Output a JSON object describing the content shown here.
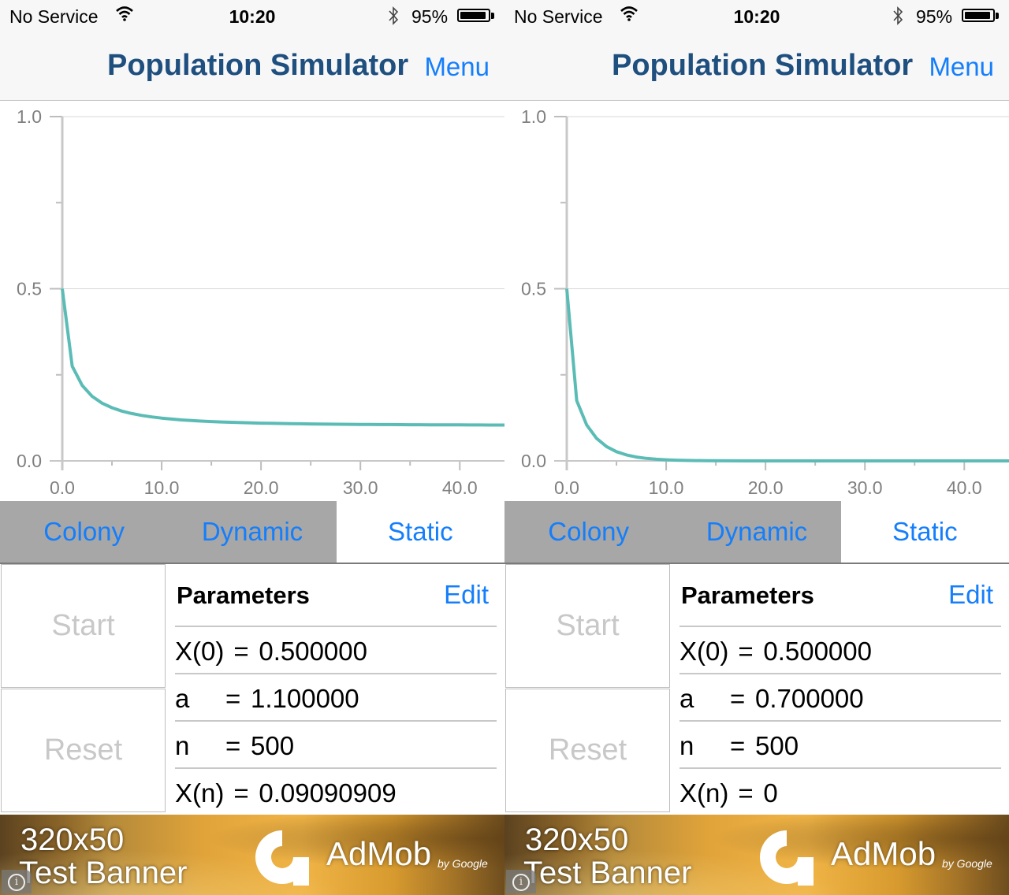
{
  "screens": [
    {
      "status": {
        "carrier": "No Service",
        "time": "10:20",
        "battery": "95%",
        "battery_level": 0.95
      },
      "nav": {
        "title": "Population Simulator",
        "menu": "Menu"
      },
      "tabs": [
        "Colony",
        "Dynamic",
        "Static"
      ],
      "active_tab": "Static",
      "controls": {
        "start": "Start",
        "reset": "Reset"
      },
      "params": {
        "title": "Parameters",
        "edit": "Edit",
        "rows": [
          {
            "label": "X(0)",
            "eq": "=",
            "value": "0.500000"
          },
          {
            "label": "a",
            "eq": "=",
            "value": "1.100000"
          },
          {
            "label": "n",
            "eq": "=",
            "value": "500"
          },
          {
            "label": "X(n)",
            "eq": "=",
            "value": "0.09090909"
          }
        ]
      },
      "ad": {
        "line1": "320x50",
        "line2": "Test Banner",
        "brand": "AdMob",
        "by": "by Google"
      }
    },
    {
      "status": {
        "carrier": "No Service",
        "time": "10:20",
        "battery": "95%",
        "battery_level": 0.95
      },
      "nav": {
        "title": "Population Simulator",
        "menu": "Menu"
      },
      "tabs": [
        "Colony",
        "Dynamic",
        "Static"
      ],
      "active_tab": "Static",
      "controls": {
        "start": "Start",
        "reset": "Reset"
      },
      "params": {
        "title": "Parameters",
        "edit": "Edit",
        "rows": [
          {
            "label": "X(0)",
            "eq": "=",
            "value": "0.500000"
          },
          {
            "label": "a",
            "eq": "=",
            "value": "0.700000"
          },
          {
            "label": "n",
            "eq": "=",
            "value": "500"
          },
          {
            "label": "X(n)",
            "eq": "=",
            "value": "0"
          }
        ]
      },
      "ad": {
        "line1": "320x50",
        "line2": "Test Banner",
        "brand": "AdMob",
        "by": "by Google"
      }
    }
  ],
  "colors": {
    "line": "#5bbcb6",
    "accent": "#147efb",
    "title": "#1f4f7f",
    "tab_inactive": "#a7a7a7"
  },
  "chart_data": [
    {
      "type": "line",
      "xlim": [
        0,
        44.5
      ],
      "ylim": [
        0,
        1.0
      ],
      "xticks": [
        "0.0",
        "10.0",
        "20.0",
        "30.0",
        "40.0"
      ],
      "yticks": [
        "0.0",
        "0.5",
        "1.0"
      ],
      "grid": true,
      "series": [
        {
          "x": [
            0,
            1,
            2,
            3,
            4,
            5,
            6,
            7,
            8,
            9,
            10,
            11,
            12,
            13,
            14,
            15,
            16,
            17,
            18,
            19,
            20,
            21,
            22,
            23,
            24,
            25,
            26,
            27,
            28,
            29,
            30,
            31,
            32,
            33,
            34,
            35,
            36,
            37,
            38,
            39,
            40,
            41,
            42,
            43,
            44,
            44.5
          ],
          "y": [
            0.5,
            0.275,
            0.2195,
            0.1877,
            0.1678,
            0.1544,
            0.1447,
            0.1375,
            0.132,
            0.1277,
            0.1242,
            0.1214,
            0.1191,
            0.1172,
            0.1156,
            0.1142,
            0.1131,
            0.1121,
            0.1112,
            0.1104,
            0.1097,
            0.1092,
            0.1086,
            0.1082,
            0.1078,
            0.1074,
            0.107,
            0.1067,
            0.1064,
            0.1062,
            0.106,
            0.1058,
            0.1056,
            0.1054,
            0.1052,
            0.1051,
            0.105,
            0.1048,
            0.1047,
            0.1046,
            0.1045,
            0.1044,
            0.1043,
            0.1042,
            0.1042,
            0.1041
          ]
        }
      ]
    },
    {
      "type": "line",
      "xlim": [
        0,
        44.5
      ],
      "ylim": [
        0,
        1.0
      ],
      "xticks": [
        "0.0",
        "10.0",
        "20.0",
        "30.0",
        "40.0"
      ],
      "yticks": [
        "0.0",
        "0.5",
        "1.0"
      ],
      "grid": true,
      "series": [
        {
          "x": [
            0,
            1,
            2,
            3,
            4,
            5,
            6,
            7,
            8,
            9,
            10,
            11,
            12,
            13,
            14,
            16,
            18,
            20,
            25,
            30,
            35,
            40,
            44.5
          ],
          "y": [
            0.5,
            0.175,
            0.1046,
            0.0655,
            0.0417,
            0.0268,
            0.0174,
            0.0113,
            0.0074,
            0.0048,
            0.0032,
            0.0021,
            0.0014,
            0.0009,
            0.0006,
            0.0003,
            0.0001,
            0.0001,
            0,
            0,
            0,
            0,
            0
          ]
        }
      ]
    }
  ]
}
